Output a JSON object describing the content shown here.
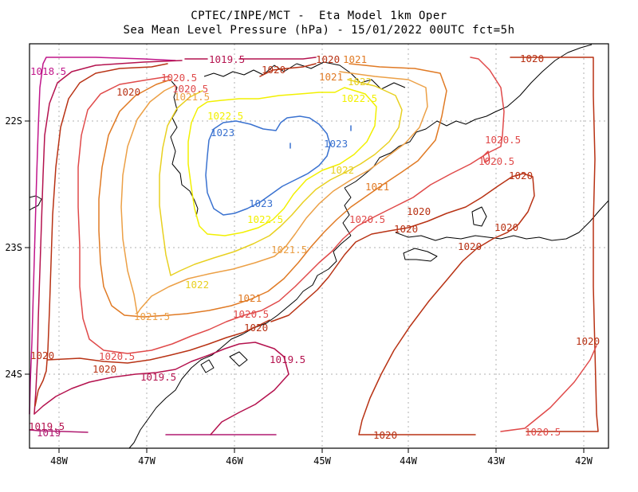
{
  "header": {
    "line1": "CPTEC/INPE/MCT -  Eta Model 1km Oper",
    "line2": "Sea Mean Level Pressure (hPa) - 15/01/2022 00UTC fct=5h"
  },
  "axes": {
    "x_ticks": [
      "48W",
      "47W",
      "46W",
      "45W",
      "44W",
      "43W",
      "42W"
    ],
    "y_ticks": [
      "22S",
      "23S",
      "24S"
    ]
  },
  "colors": {
    "1018.5": "#c0168a",
    "1019": "#b01a70",
    "1019.5": "#b4124e",
    "1020": "#b83214",
    "1020.5": "#e04a4a",
    "1021": "#e07a24",
    "1021.5": "#eca046",
    "1022": "#e8d020",
    "1022.5": "#f2f000",
    "1023": "#3a72d0",
    "coast": "#000000",
    "grid": "#b0b0b0"
  },
  "contour_labels": [
    {
      "text": "1018.5",
      "level": "1018.5"
    },
    {
      "text": "1019.5",
      "level": "1019.5"
    },
    {
      "text": "1020",
      "level": "1020"
    },
    {
      "text": "1020",
      "level": "1020"
    },
    {
      "text": "1021",
      "level": "1021"
    },
    {
      "text": "1020.5",
      "level": "1020.5"
    },
    {
      "text": "1021",
      "level": "1021"
    },
    {
      "text": "1022",
      "level": "1022"
    },
    {
      "text": "1022.5",
      "level": "1022.5"
    },
    {
      "text": "1020",
      "level": "1020"
    },
    {
      "text": "1020.5",
      "level": "1020.5"
    },
    {
      "text": "1021.5",
      "level": "1021.5"
    },
    {
      "text": "1022.5",
      "level": "1022.5"
    },
    {
      "text": "1023",
      "level": "1023"
    },
    {
      "text": "1023",
      "level": "1023"
    },
    {
      "text": "1022",
      "level": "1022"
    },
    {
      "text": "1023",
      "level": "1023"
    },
    {
      "text": "1022.5",
      "level": "1022.5"
    },
    {
      "text": "1021",
      "level": "1021"
    },
    {
      "text": "1020.5",
      "level": "1020.5"
    },
    {
      "text": "1020",
      "level": "1020"
    },
    {
      "text": "1021.5",
      "level": "1021.5"
    },
    {
      "text": "1022",
      "level": "1022"
    },
    {
      "text": "1021.5",
      "level": "1021.5"
    },
    {
      "text": "1021",
      "level": "1021"
    },
    {
      "text": "1020.5",
      "level": "1020.5"
    },
    {
      "text": "1020",
      "level": "1020"
    },
    {
      "text": "1020",
      "level": "1020"
    },
    {
      "text": "1020.5",
      "level": "1020.5"
    },
    {
      "text": "1020",
      "level": "1020"
    },
    {
      "text": "1019.5",
      "level": "1019.5"
    },
    {
      "text": "1019.5",
      "level": "1019.5"
    },
    {
      "text": "1020",
      "level": "1020"
    },
    {
      "text": "1020.5",
      "level": "1020.5"
    },
    {
      "text": "1020",
      "level": "1020"
    },
    {
      "text": "1020",
      "level": "1020"
    },
    {
      "text": "1020.5",
      "level": "1020.5"
    },
    {
      "text": "1020",
      "level": "1020"
    },
    {
      "text": "1020",
      "level": "1020"
    },
    {
      "text": "1020.5",
      "level": "1020.5"
    },
    {
      "text": "1020",
      "level": "1020"
    },
    {
      "text": "1020",
      "level": "1020"
    },
    {
      "text": "1019.5",
      "level": "1019.5"
    },
    {
      "text": "1019",
      "level": "1019"
    }
  ]
}
